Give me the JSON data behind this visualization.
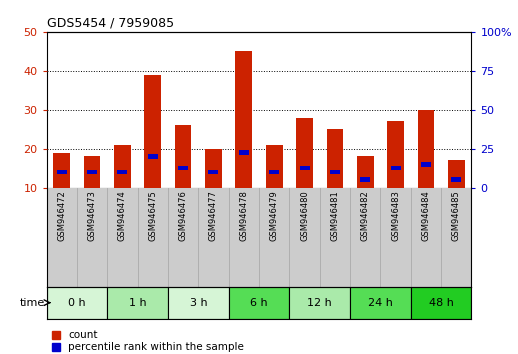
{
  "title": "GDS5454 / 7959085",
  "samples": [
    "GSM946472",
    "GSM946473",
    "GSM946474",
    "GSM946475",
    "GSM946476",
    "GSM946477",
    "GSM946478",
    "GSM946479",
    "GSM946480",
    "GSM946481",
    "GSM946482",
    "GSM946483",
    "GSM946484",
    "GSM946485"
  ],
  "count_values": [
    19,
    18,
    21,
    39,
    26,
    20,
    45,
    21,
    28,
    25,
    18,
    27,
    30,
    17
  ],
  "percentile_values": [
    14,
    14,
    14,
    18,
    15,
    14,
    19,
    14,
    15,
    14,
    12,
    15,
    16,
    12
  ],
  "time_groups": [
    {
      "label": "0 h",
      "start": 0,
      "end": 2,
      "color": "#d6f5d6"
    },
    {
      "label": "1 h",
      "start": 2,
      "end": 4,
      "color": "#aaeaaa"
    },
    {
      "label": "3 h",
      "start": 4,
      "end": 6,
      "color": "#d6f5d6"
    },
    {
      "label": "6 h",
      "start": 6,
      "end": 8,
      "color": "#55dd55"
    },
    {
      "label": "12 h",
      "start": 8,
      "end": 10,
      "color": "#aaeaaa"
    },
    {
      "label": "24 h",
      "start": 10,
      "end": 12,
      "color": "#55dd55"
    },
    {
      "label": "48 h",
      "start": 12,
      "end": 14,
      "color": "#22cc22"
    }
  ],
  "bar_color": "#cc2200",
  "percentile_color": "#0000cc",
  "ylim_left": [
    10,
    50
  ],
  "ylim_right": [
    0,
    100
  ],
  "yticks_left": [
    10,
    20,
    30,
    40,
    50
  ],
  "yticks_right": [
    0,
    25,
    50,
    75,
    100
  ],
  "bg_color": "#ffffff",
  "bar_width": 0.55,
  "sample_row_bg": "#cccccc",
  "legend_count_label": "count",
  "legend_percentile_label": "percentile rank within the sample",
  "time_label": "time",
  "left_tick_color": "#cc2200",
  "right_tick_color": "#0000cc",
  "title_fontsize": 9,
  "axis_fontsize": 8,
  "sample_fontsize": 6,
  "legend_fontsize": 7.5
}
